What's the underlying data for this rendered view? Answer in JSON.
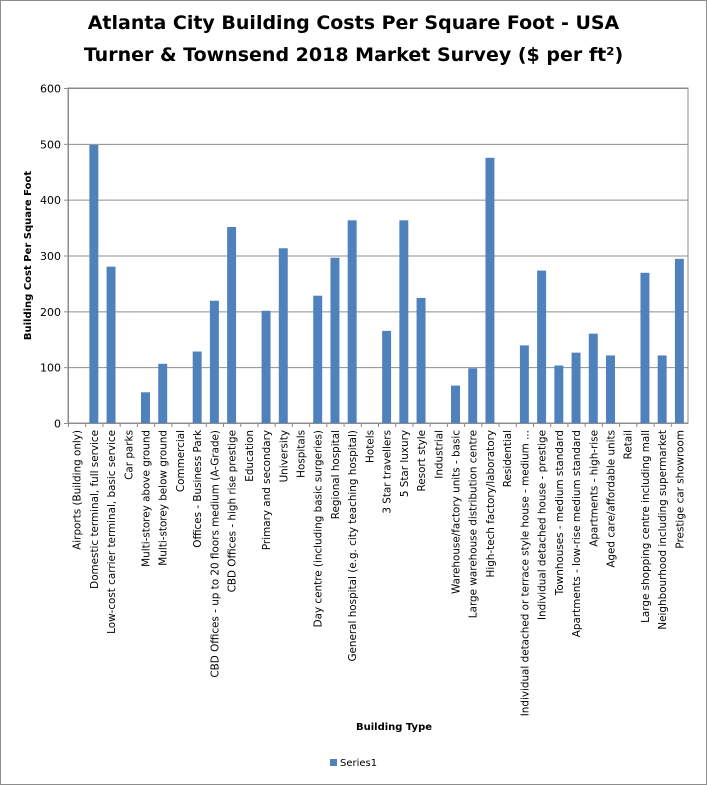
{
  "chart_data": {
    "type": "bar",
    "title": "Atlanta City Building Costs Per Square Foot - USA",
    "subtitle": "Turner & Townsend 2018 Market Survey ($ per ft²)",
    "xlabel": "Building Type",
    "ylabel": "Building  Cost Per Square Foot",
    "ylim": [
      0,
      600
    ],
    "yticks": [
      "0",
      "100",
      "200",
      "300",
      "400",
      "500",
      "600"
    ],
    "grid": true,
    "legend_position": "bottom",
    "bar_color": "#4F81BD",
    "categories": [
      "Airports (Building only)",
      "Domestic terminal, full service",
      "Low-cost carrier terminal, basic service",
      "Car parks",
      "Multi-storey above ground",
      "Multi-storey below ground",
      "Commercial",
      "Offices - Business Park",
      "CBD Offices - up to 20 floors medium (A-Grade)",
      "CBD Offices - high rise prestige",
      "Education",
      "Primary and secondary",
      "University",
      "Hospitals",
      "Day centre (including basic surgeries)",
      "Regional hospital",
      "General hospital (e.g. city teaching hospital)",
      "Hotels",
      "3 Star travellers",
      "5 Star luxury",
      "Resort style",
      "Industrial",
      "Warehouse/factory units - basic",
      "Large warehouse distribution centre",
      "High-tech factory/laboratory",
      "Residential",
      "Individual detached or terrace style house - medium ...",
      "Individual detached house - prestige",
      "Townhouses - medium standard",
      "Apartments - low-rise medium standard",
      "Apartments - high-rise",
      "Aged care/affordable units",
      "Retail",
      "Large shopping centre including mall",
      "Neighbourhood including supermarket",
      "Prestige car showroom"
    ],
    "series": [
      {
        "name": "Series1",
        "values": [
          null,
          498,
          280,
          null,
          55,
          106,
          null,
          128,
          219,
          351,
          null,
          201,
          313,
          null,
          228,
          296,
          363,
          null,
          165,
          363,
          224,
          null,
          67,
          98,
          475,
          null,
          139,
          273,
          103,
          126,
          160,
          121,
          null,
          269,
          121,
          294
        ]
      }
    ]
  }
}
